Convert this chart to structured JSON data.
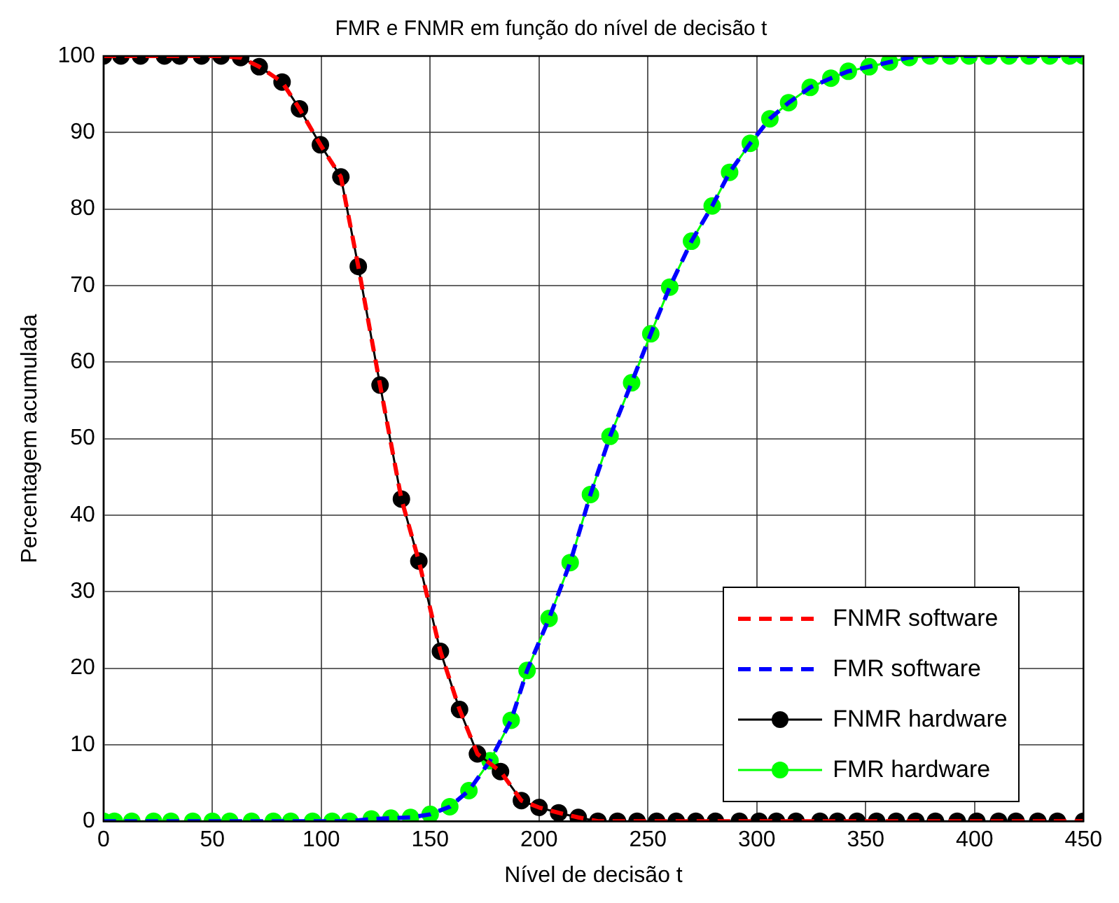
{
  "chart_data": {
    "type": "line",
    "title": "FMR e FNMR em função do nível de decisão t",
    "xlabel": "Nível de decisão t",
    "ylabel": "Percentagem acumulada",
    "xlim": [
      0,
      450
    ],
    "xticks": [
      0,
      50,
      100,
      150,
      200,
      250,
      300,
      350,
      400,
      450
    ],
    "ylim": [
      0,
      100
    ],
    "yticks": [
      0,
      10,
      20,
      30,
      40,
      50,
      60,
      70,
      80,
      90,
      100
    ],
    "grid": true,
    "legend": "bottom right",
    "series": [
      {
        "name": "FNMR software",
        "color": "#ff0000",
        "line_style": "dashed",
        "marker": "none",
        "x": [
          0,
          8,
          17,
          28,
          35,
          45,
          54,
          63,
          71.5,
          82,
          90,
          99.6,
          109,
          117,
          127,
          136.8,
          144.8,
          154.7,
          163.5,
          171.7,
          182.3,
          191.9,
          200,
          209,
          218,
          227,
          236,
          245,
          254,
          263,
          272,
          281,
          292,
          301,
          309,
          318,
          329,
          337,
          346,
          355,
          364,
          373,
          382,
          392,
          401,
          411,
          419,
          429,
          438,
          450
        ],
        "values": [
          100,
          100,
          100,
          100,
          100,
          100,
          100,
          99.8,
          98.6,
          96.6,
          93.1,
          88.4,
          84.2,
          72.5,
          57,
          42.1,
          34,
          22.2,
          14.6,
          8.8,
          6.5,
          2.7,
          1.8,
          1.1,
          0.5,
          0,
          0,
          0,
          0,
          0,
          0,
          0,
          0,
          0,
          0,
          0,
          0,
          0,
          0,
          0,
          0,
          0,
          0,
          0,
          0,
          0,
          0,
          0,
          0,
          0
        ]
      },
      {
        "name": "FMR software",
        "color": "#0000ff",
        "line_style": "dashed",
        "marker": "none",
        "x": [
          0,
          5,
          13,
          23,
          31,
          41,
          50,
          58,
          68,
          78,
          86,
          96,
          105,
          113,
          123,
          132,
          141,
          150,
          159,
          167.8,
          177.5,
          187.2,
          194.5,
          204.6,
          214.3,
          223.6,
          232.6,
          242.5,
          251.3,
          260,
          270,
          279.5,
          287.5,
          297,
          306,
          314.6,
          324.5,
          334,
          342,
          351.6,
          360.9,
          370,
          379.6,
          388.8,
          397.5,
          406.5,
          415.8,
          425,
          434.5,
          443.7,
          450
        ],
        "values": [
          0,
          0,
          0,
          0,
          0,
          0,
          0,
          0,
          0,
          0,
          0,
          0,
          0,
          0,
          0.3,
          0.4,
          0.5,
          0.9,
          1.9,
          4,
          7.9,
          13.2,
          19.7,
          26.5,
          33.8,
          42.7,
          50.3,
          57.3,
          63.7,
          69.8,
          75.8,
          80.4,
          84.8,
          88.6,
          91.8,
          93.9,
          95.9,
          97.1,
          98,
          98.6,
          99.2,
          99.8,
          100,
          100,
          100,
          100,
          100,
          100,
          100,
          100,
          100
        ]
      },
      {
        "name": "FNMR hardware",
        "color": "#000000",
        "line_style": "solid",
        "marker": "circle",
        "x": [
          0,
          8,
          17,
          28,
          35,
          45,
          54,
          63,
          71.5,
          82,
          90,
          99.6,
          109,
          117,
          127,
          136.8,
          144.8,
          154.7,
          163.5,
          171.7,
          182.3,
          191.9,
          200,
          209,
          218,
          227,
          236,
          245,
          254,
          263,
          272,
          281,
          292,
          301,
          309,
          318,
          329,
          337,
          346,
          355,
          364,
          373,
          382,
          392,
          401,
          411,
          419,
          429,
          438,
          450
        ],
        "values": [
          100,
          100,
          100,
          100,
          100,
          100,
          100,
          99.8,
          98.6,
          96.6,
          93.1,
          88.4,
          84.2,
          72.5,
          57,
          42.1,
          34,
          22.2,
          14.6,
          8.8,
          6.5,
          2.7,
          1.8,
          1.1,
          0.5,
          0,
          0,
          0,
          0,
          0,
          0,
          0,
          0,
          0,
          0,
          0,
          0,
          0,
          0,
          0,
          0,
          0,
          0,
          0,
          0,
          0,
          0,
          0,
          0,
          0
        ]
      },
      {
        "name": "FMR hardware",
        "color": "#00ff00",
        "line_style": "solid",
        "marker": "circle",
        "x": [
          0,
          5,
          13,
          23,
          31,
          41,
          50,
          58,
          68,
          78,
          86,
          96,
          105,
          113,
          123,
          132,
          141,
          150,
          159,
          167.8,
          177.5,
          187.2,
          194.5,
          204.6,
          214.3,
          223.6,
          232.6,
          242.5,
          251.3,
          260,
          270,
          279.5,
          287.5,
          297,
          306,
          314.6,
          324.5,
          334,
          342,
          351.6,
          360.9,
          370,
          379.6,
          388.8,
          397.5,
          406.5,
          415.8,
          425,
          434.5,
          443.7,
          450
        ],
        "values": [
          0,
          0,
          0,
          0,
          0,
          0,
          0,
          0,
          0,
          0,
          0,
          0,
          0,
          0,
          0.3,
          0.4,
          0.5,
          0.9,
          1.9,
          4,
          7.9,
          13.2,
          19.7,
          26.5,
          33.8,
          42.7,
          50.3,
          57.3,
          63.7,
          69.8,
          75.8,
          80.4,
          84.8,
          88.6,
          91.8,
          93.9,
          95.9,
          97.1,
          98,
          98.6,
          99.2,
          99.8,
          100,
          100,
          100,
          100,
          100,
          100,
          100,
          100,
          100
        ]
      }
    ]
  }
}
